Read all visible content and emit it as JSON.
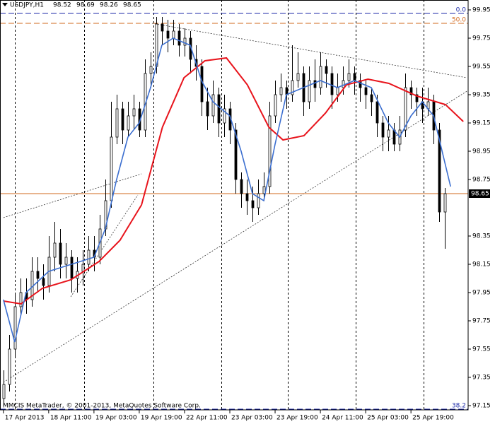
{
  "chart_data": {
    "type": "candlestick",
    "symbol": "USDJPY,H1",
    "ohlc_header": [
      98.52,
      98.69,
      98.26,
      98.65
    ],
    "watermark": "MMCIS MetaTrader, © 2001-2013, MetaQuotes Software Corp.",
    "up_color": "#ffffff",
    "down_color": "#000000",
    "candles": {
      "open": [
        97.2,
        97.3,
        97.55,
        97.85,
        97.95,
        97.9,
        98.1,
        98.05,
        98.0,
        98.2,
        98.3,
        98.15,
        98.2,
        98.05,
        98.1,
        98.15,
        98.25,
        98.2,
        98.4,
        98.6,
        99.05,
        99.25,
        99.1,
        99.2,
        99.25,
        99.1,
        99.5,
        99.55,
        99.85,
        99.8,
        99.75,
        99.8,
        99.7,
        99.75,
        99.6,
        99.55,
        99.3,
        99.2,
        99.35,
        99.15,
        99.25,
        99.1,
        98.75,
        98.65,
        98.6,
        98.55,
        98.65,
        98.7,
        99.2,
        99.35,
        99.4,
        99.35,
        99.45,
        99.5,
        99.3,
        99.45,
        99.4,
        99.55,
        99.5,
        99.35,
        99.4,
        99.45,
        99.5,
        99.45,
        99.4,
        99.35,
        99.3,
        99.15,
        99.05,
        99.1,
        99.0,
        99.1,
        99.4,
        99.35,
        99.3,
        99.25,
        99.3,
        99.1,
        98.52
      ],
      "high": [
        97.4,
        97.65,
        97.95,
        98.05,
        98.05,
        98.2,
        98.2,
        98.15,
        98.35,
        98.45,
        98.4,
        98.3,
        98.25,
        98.2,
        98.25,
        98.35,
        98.35,
        98.5,
        98.75,
        99.3,
        99.35,
        99.3,
        99.3,
        99.35,
        99.3,
        99.6,
        99.65,
        99.9,
        99.9,
        99.88,
        99.88,
        99.85,
        99.82,
        99.8,
        99.7,
        99.6,
        99.4,
        99.45,
        99.4,
        99.35,
        99.3,
        99.15,
        98.8,
        98.75,
        98.7,
        98.75,
        98.8,
        99.3,
        99.45,
        99.5,
        99.45,
        99.7,
        99.65,
        99.55,
        99.55,
        99.6,
        99.65,
        99.6,
        99.55,
        99.5,
        99.55,
        99.6,
        99.55,
        99.5,
        99.45,
        99.4,
        99.35,
        99.2,
        99.2,
        99.15,
        99.2,
        99.5,
        99.45,
        99.4,
        99.4,
        99.4,
        99.35,
        99.15,
        98.69
      ],
      "low": [
        97.15,
        97.25,
        97.5,
        97.8,
        97.8,
        97.85,
        97.95,
        97.9,
        97.95,
        98.1,
        98.05,
        98.05,
        97.95,
        97.95,
        98.0,
        98.1,
        98.1,
        98.15,
        98.35,
        98.55,
        99.0,
        99.0,
        99.05,
        99.1,
        99.05,
        99.05,
        99.4,
        99.5,
        99.7,
        99.65,
        99.7,
        99.62,
        99.62,
        99.5,
        99.45,
        99.2,
        99.1,
        99.15,
        99.05,
        99.05,
        99.0,
        98.65,
        98.55,
        98.5,
        98.45,
        98.5,
        98.6,
        98.65,
        99.15,
        99.3,
        99.25,
        99.3,
        99.4,
        99.2,
        99.25,
        99.3,
        99.35,
        99.4,
        99.25,
        99.3,
        99.35,
        99.4,
        99.35,
        99.3,
        99.25,
        99.2,
        99.05,
        98.95,
        98.95,
        98.95,
        98.95,
        99.05,
        99.25,
        99.2,
        99.15,
        99.2,
        99.0,
        98.45,
        98.26
      ],
      "close": [
        97.3,
        97.55,
        97.85,
        97.95,
        97.9,
        98.1,
        98.05,
        98.0,
        98.2,
        98.3,
        98.15,
        98.2,
        98.05,
        98.1,
        98.15,
        98.25,
        98.2,
        98.4,
        98.6,
        99.05,
        99.25,
        99.1,
        99.2,
        99.25,
        99.1,
        99.5,
        99.55,
        99.85,
        99.8,
        99.75,
        99.8,
        99.7,
        99.75,
        99.6,
        99.55,
        99.3,
        99.2,
        99.35,
        99.15,
        99.25,
        99.1,
        98.75,
        98.65,
        98.6,
        98.55,
        98.65,
        98.7,
        99.2,
        99.35,
        99.4,
        99.35,
        99.45,
        99.5,
        99.3,
        99.45,
        99.4,
        99.55,
        99.5,
        99.35,
        99.4,
        99.45,
        99.5,
        99.45,
        99.4,
        99.35,
        99.3,
        99.15,
        99.05,
        99.1,
        99.0,
        99.1,
        99.4,
        99.35,
        99.3,
        99.25,
        99.3,
        99.1,
        98.52,
        98.65
      ]
    },
    "series": [
      {
        "color": "#e8141c",
        "x": [
          0,
          3.1,
          6.9,
          11.9,
          16.9,
          20.6,
          24.4,
          28.1,
          31.9,
          35.6,
          39.4,
          43.1,
          46.9,
          49.4,
          53.1,
          56.9,
          60.6,
          64.4,
          68.1,
          73.1,
          78.1,
          81.25
        ],
        "values": [
          97.89,
          97.87,
          97.98,
          98.04,
          98.17,
          98.32,
          98.57,
          99.12,
          99.47,
          99.59,
          99.61,
          99.42,
          99.12,
          99.03,
          99.06,
          99.22,
          99.42,
          99.46,
          99.43,
          99.34,
          99.28,
          99.16
        ]
      },
      {
        "color": "#3c6fd0",
        "x": [
          0,
          2,
          4,
          8,
          12,
          16,
          18,
          20,
          22,
          24,
          26,
          28,
          30,
          33,
          35,
          37,
          40,
          42,
          44,
          46,
          48,
          50,
          53,
          56,
          59,
          62,
          65,
          68,
          70,
          72,
          74,
          76,
          79
        ],
        "values": [
          97.9,
          97.6,
          97.95,
          98.1,
          98.15,
          98.2,
          98.4,
          98.75,
          99.05,
          99.15,
          99.4,
          99.7,
          99.75,
          99.7,
          99.45,
          99.3,
          99.2,
          98.95,
          98.65,
          98.6,
          99.0,
          99.35,
          99.4,
          99.45,
          99.4,
          99.45,
          99.4,
          99.15,
          99.05,
          99.2,
          99.3,
          99.2,
          98.7
        ]
      }
    ],
    "trendlines": [
      {
        "x": [
          26.25,
          81.9
        ],
        "y": [
          99.855,
          99.47
        ]
      },
      {
        "x": [
          0,
          82.1
        ],
        "y": [
          97.315,
          99.38
        ]
      },
      {
        "x": [
          0,
          24.4
        ],
        "y": [
          98.48,
          98.79
        ]
      },
      {
        "x": [
          11.9,
          23.75
        ],
        "y": [
          97.92,
          98.64
        ]
      }
    ],
    "fibo_levels": [
      {
        "label": "0.0",
        "value": 99.925,
        "color": "#1c2aa8"
      },
      {
        "label": "50.0",
        "value": 99.855,
        "color": "#d2691e"
      },
      {
        "label": "38.2",
        "value": 97.125,
        "color": "#1c2aa8"
      }
    ],
    "current_price": 98.65,
    "current_price_color": "#d2691e",
    "period_separators": [
      2,
      14.25,
      26.5,
      38.5,
      50.25,
      62.25,
      74.25
    ],
    "xlim": [
      -0.6,
      82.1
    ],
    "ylim": [
      97.12,
      100.02
    ],
    "yticks": [
      99.95,
      99.75,
      99.55,
      99.35,
      99.15,
      98.95,
      98.75,
      98.35,
      98.15,
      97.95,
      97.75,
      97.55,
      97.35,
      97.15
    ],
    "xticks": [
      {
        "value": 0,
        "label": "17 Apr 2013"
      },
      {
        "value": 8,
        "label": "18 Apr 11:00"
      },
      {
        "value": 16,
        "label": "19 Apr 03:00"
      },
      {
        "value": 24,
        "label": "19 Apr 19:00"
      },
      {
        "value": 32,
        "label": "22 Apr 11:00"
      },
      {
        "value": 40,
        "label": "23 Apr 03:00"
      },
      {
        "value": 48,
        "label": "23 Apr 19:00"
      },
      {
        "value": 56,
        "label": "24 Apr 11:00"
      },
      {
        "value": 64,
        "label": "25 Apr 03:00"
      },
      {
        "value": 72,
        "label": "25 Apr 19:00"
      }
    ]
  }
}
